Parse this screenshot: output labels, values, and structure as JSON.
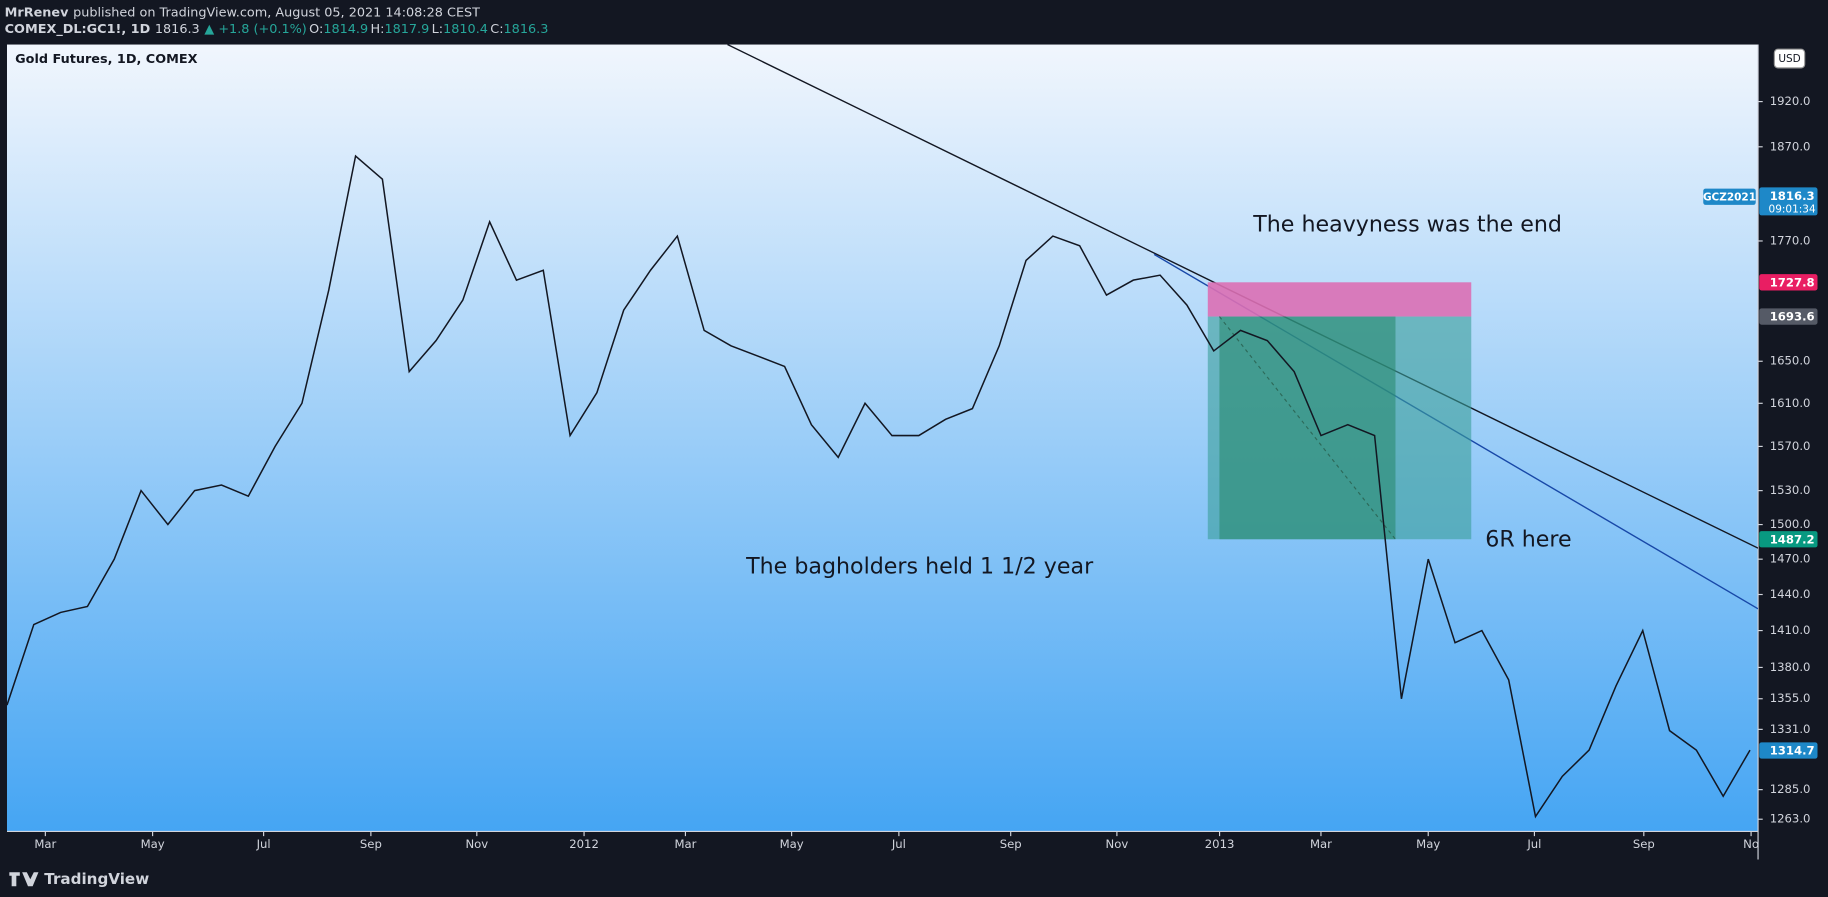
{
  "header": {
    "author": "MrRenev",
    "published": "published on TradingView.com, August 05, 2021 14:08:28 CEST",
    "symbol": "COMEX_DL:GC1!, 1D",
    "last": "1816.3",
    "change": "▲ +1.8 (+0.1%)",
    "ohlc": [
      {
        "label": "O:",
        "value": "1814.9"
      },
      {
        "label": "H:",
        "value": "1817.9"
      },
      {
        "label": "L:",
        "value": "1810.4"
      },
      {
        "label": "C:",
        "value": "1816.3"
      }
    ]
  },
  "chart_data": {
    "type": "line",
    "title": "Gold Futures, 1D, COMEX",
    "currency": "USD",
    "log_scale": true,
    "grid": false,
    "color": "#131722",
    "values": [
      1350,
      1415,
      1425,
      1430,
      1470,
      1530,
      1500,
      1530,
      1535,
      1525,
      1570,
      1610,
      1720,
      1860,
      1835,
      1640,
      1670,
      1710,
      1790,
      1730,
      1740,
      1580,
      1620,
      1700,
      1740,
      1775,
      1680,
      1665,
      1655,
      1645,
      1590,
      1560,
      1610,
      1580,
      1580,
      1595,
      1605,
      1665,
      1750,
      1775,
      1765,
      1715,
      1730,
      1735,
      1705,
      1660,
      1680,
      1670,
      1640,
      1580,
      1590,
      1580,
      1355,
      1470,
      1400,
      1410,
      1370,
      1265,
      1295,
      1315,
      1365,
      1410,
      1330,
      1315,
      1280,
      1315
    ],
    "xlim": [
      0,
      65.3
    ],
    "xticks": [
      {
        "value": 1.43,
        "label": "Mar"
      },
      {
        "value": 5.43,
        "label": "May"
      },
      {
        "value": 9.57,
        "label": "Jul"
      },
      {
        "value": 13.57,
        "label": "Sep"
      },
      {
        "value": 17.52,
        "label": "Nov"
      },
      {
        "value": 21.52,
        "label": "2012"
      },
      {
        "value": 25.3,
        "label": "Mar"
      },
      {
        "value": 29.26,
        "label": "May"
      },
      {
        "value": 33.26,
        "label": "Jul"
      },
      {
        "value": 37.43,
        "label": "Sep"
      },
      {
        "value": 41.39,
        "label": "Nov"
      },
      {
        "value": 45.22,
        "label": "2013"
      },
      {
        "value": 49,
        "label": "Mar"
      },
      {
        "value": 53,
        "label": "May"
      },
      {
        "value": 56.96,
        "label": "Jul"
      },
      {
        "value": 61.04,
        "label": "Sep"
      },
      {
        "value": 65.04,
        "label": "No"
      }
    ],
    "ylim": [
      1254,
      1985
    ],
    "yticks": [
      {
        "value": 1920,
        "label": "1920.0"
      },
      {
        "value": 1870,
        "label": "1870.0"
      },
      {
        "value": 1770,
        "label": "1770.0"
      },
      {
        "value": 1650,
        "label": "1650.0"
      },
      {
        "value": 1610,
        "label": "1610.0"
      },
      {
        "value": 1570,
        "label": "1570.0"
      },
      {
        "value": 1530,
        "label": "1530.0"
      },
      {
        "value": 1500,
        "label": "1500.0"
      },
      {
        "value": 1470,
        "label": "1470.0"
      },
      {
        "value": 1440,
        "label": "1440.0"
      },
      {
        "value": 1410,
        "label": "1410.0"
      },
      {
        "value": 1380,
        "label": "1380.0"
      },
      {
        "value": 1355,
        "label": "1355.0"
      },
      {
        "value": 1331,
        "label": "1331.0"
      },
      {
        "value": 1285,
        "label": "1285.0"
      },
      {
        "value": 1263,
        "label": "1263.0"
      }
    ],
    "price_markers": [
      {
        "name": "GCZ2021",
        "value": 1816.3,
        "timer": "09:01:34",
        "color": "#1e88c8"
      },
      {
        "value": 1727.8,
        "color": "#e91e63"
      },
      {
        "value": 1693.6,
        "color": "#555a66"
      },
      {
        "value": 1487.2,
        "color": "#089981"
      },
      {
        "value": 1314.7,
        "color": "#1e88c8"
      }
    ],
    "annotations": [
      "The heavyness was the end",
      "The bagholders held 1 1/2 year",
      "6R here"
    ]
  },
  "footer": {
    "brand": "TradingView"
  }
}
